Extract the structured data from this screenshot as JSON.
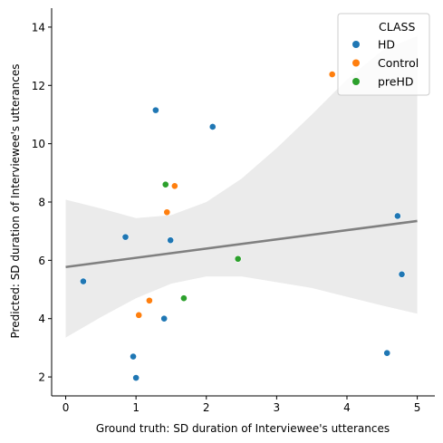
{
  "chart_data": {
    "type": "scatter",
    "title": "",
    "xlabel": "Ground truth: SD duration of Interviewee's utterances",
    "ylabel": "Predicted:  SD duration of Interviewee's utterances",
    "xlim": [
      -0.2,
      5.25
    ],
    "ylim": [
      1.35,
      14.65
    ],
    "xticks": [
      0,
      1,
      2,
      3,
      4,
      5
    ],
    "yticks": [
      2,
      4,
      6,
      8,
      10,
      12,
      14
    ],
    "grid": false,
    "legend": {
      "title": "CLASS",
      "placement": "top-right"
    },
    "series": [
      {
        "name": "HD",
        "color": "#1f77b4",
        "points": [
          [
            0.25,
            5.28
          ],
          [
            0.85,
            6.8
          ],
          [
            0.96,
            2.7
          ],
          [
            1.0,
            1.97
          ],
          [
            1.28,
            11.15
          ],
          [
            1.4,
            4.0
          ],
          [
            1.49,
            6.69
          ],
          [
            2.09,
            10.58
          ],
          [
            4.57,
            2.82
          ],
          [
            4.72,
            7.52
          ],
          [
            4.78,
            5.52
          ]
        ]
      },
      {
        "name": "Control",
        "color": "#ff7f0e",
        "points": [
          [
            1.04,
            4.12
          ],
          [
            1.19,
            4.62
          ],
          [
            1.44,
            7.65
          ],
          [
            1.55,
            8.55
          ],
          [
            3.79,
            12.38
          ]
        ]
      },
      {
        "name": "preHD",
        "color": "#2ca02c",
        "points": [
          [
            1.42,
            8.6
          ],
          [
            1.68,
            4.7
          ],
          [
            2.45,
            6.05
          ]
        ]
      }
    ],
    "regression": {
      "color": "#808080",
      "band_color": "#ebebeb",
      "x_range": [
        0,
        5
      ],
      "line": [
        5.77,
        7.35
      ],
      "band": [
        {
          "x": 0.0,
          "lower": 3.35,
          "upper": 8.08
        },
        {
          "x": 0.5,
          "lower": 4.05,
          "upper": 7.78
        },
        {
          "x": 1.0,
          "lower": 4.7,
          "upper": 7.45
        },
        {
          "x": 1.5,
          "lower": 5.2,
          "upper": 7.55
        },
        {
          "x": 2.0,
          "lower": 5.45,
          "upper": 8.0
        },
        {
          "x": 2.5,
          "lower": 5.45,
          "upper": 8.8
        },
        {
          "x": 3.0,
          "lower": 5.25,
          "upper": 9.85
        },
        {
          "x": 3.5,
          "lower": 5.05,
          "upper": 11.0
        },
        {
          "x": 4.0,
          "lower": 4.75,
          "upper": 12.2
        },
        {
          "x": 4.5,
          "lower": 4.45,
          "upper": 13.2
        },
        {
          "x": 5.0,
          "lower": 4.17,
          "upper": 13.7
        }
      ]
    }
  }
}
